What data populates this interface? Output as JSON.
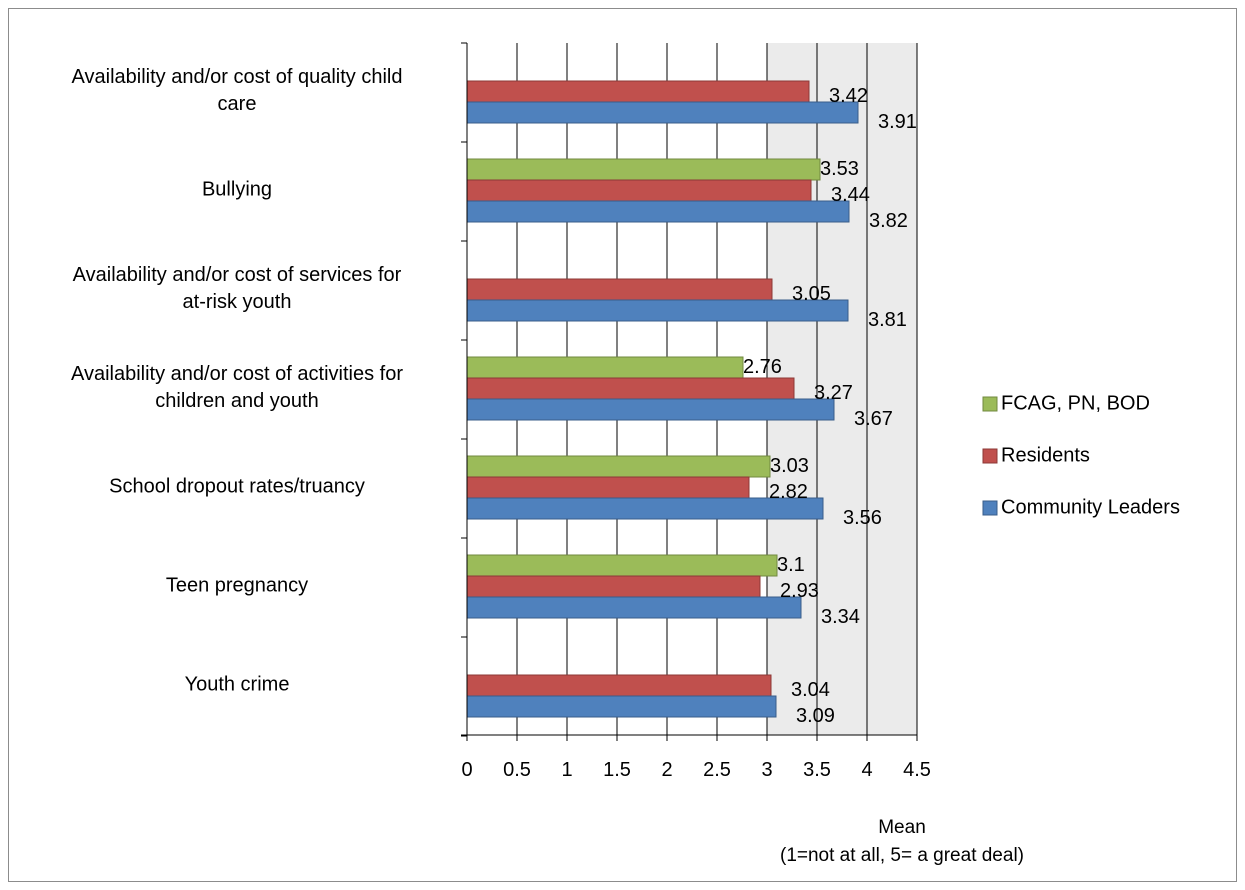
{
  "chart_data": {
    "type": "bar",
    "orientation": "horizontal",
    "categories": [
      [
        "Availability and/or cost of quality child",
        "care"
      ],
      [
        "Bullying"
      ],
      [
        "Availability and/or cost of services for",
        "at-risk youth"
      ],
      [
        "Availability and/or cost of activities for",
        "children and youth"
      ],
      [
        "School dropout rates/truancy"
      ],
      [
        "Teen pregnancy"
      ],
      [
        "Youth crime"
      ]
    ],
    "series": [
      {
        "name": "FCAG, PN, BOD",
        "color": "#9bbb59",
        "stroke": "#71893f",
        "values": [
          null,
          3.53,
          null,
          2.76,
          3.03,
          3.1,
          null
        ],
        "labels": [
          "",
          "3.53",
          "",
          "2.76",
          "3.03",
          "3.1",
          ""
        ]
      },
      {
        "name": "Residents",
        "color": "#c0504d",
        "stroke": "#8c3836",
        "values": [
          3.42,
          3.44,
          3.05,
          3.27,
          2.82,
          2.93,
          3.04
        ],
        "labels": [
          "3.42",
          "3.44",
          "3.05",
          "3.27",
          "2.82",
          "2.93",
          "3.04"
        ]
      },
      {
        "name": "Community Leaders",
        "color": "#4f81bd",
        "stroke": "#385d8a",
        "values": [
          3.91,
          3.82,
          3.81,
          3.67,
          3.56,
          3.34,
          3.09
        ],
        "labels": [
          "3.91",
          "3.82",
          "3.81",
          "3.67",
          "3.56",
          "3.34",
          "3.09"
        ]
      }
    ],
    "x_ticks": [
      "0",
      "0.5",
      "1",
      "1.5",
      "2",
      "2.5",
      "3",
      "3.5",
      "4",
      "4.5"
    ],
    "xlim": [
      0,
      4.5
    ],
    "xlabel_lines": [
      "Mean",
      "(1=not at all, 5= a great deal)"
    ],
    "grid": "vertical, from 3 to 4.5",
    "plot_fill": "#ebebeb",
    "legend_position": "right"
  }
}
